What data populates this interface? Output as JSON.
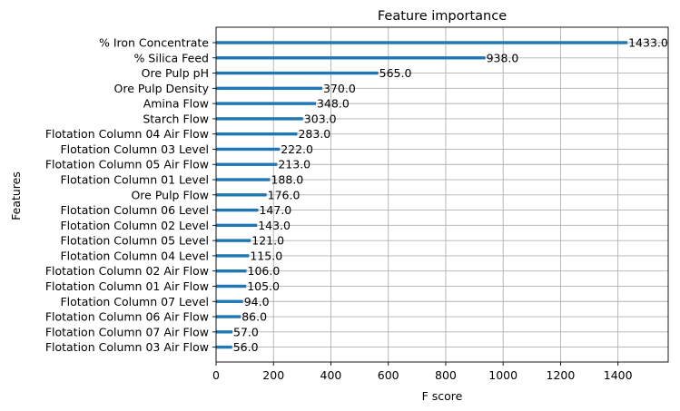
{
  "chart_data": {
    "type": "bar",
    "orientation": "horizontal",
    "title": "Feature importance",
    "xlabel": "F score",
    "ylabel": "Features",
    "xlim": [
      0,
      1575
    ],
    "xticks": [
      0,
      200,
      400,
      600,
      800,
      1000,
      1200,
      1400
    ],
    "grid": true,
    "categories": [
      "% Iron Concentrate",
      "% Silica Feed",
      "Ore Pulp pH",
      "Ore Pulp Density",
      "Amina Flow",
      "Starch Flow",
      "Flotation Column 04 Air Flow",
      "Flotation Column 03 Level",
      "Flotation Column 05 Air Flow",
      "Flotation Column 01 Level",
      "Ore Pulp Flow",
      "Flotation Column 06 Level",
      "Flotation Column 02 Level",
      "Flotation Column 05 Level",
      "Flotation Column 04 Level",
      "Flotation Column 02 Air Flow",
      "Flotation Column 01 Air Flow",
      "Flotation Column 07 Level",
      "Flotation Column 06 Air Flow",
      "Flotation Column 07 Air Flow",
      "Flotation Column 03 Air Flow"
    ],
    "values": [
      1433.0,
      938.0,
      565.0,
      370.0,
      348.0,
      303.0,
      283.0,
      222.0,
      213.0,
      188.0,
      176.0,
      147.0,
      143.0,
      121.0,
      115.0,
      106.0,
      105.0,
      94.0,
      86.0,
      57.0,
      56.0
    ],
    "value_labels": [
      "1433.0",
      "938.0",
      "565.0",
      "370.0",
      "348.0",
      "303.0",
      "283.0",
      "222.0",
      "213.0",
      "188.0",
      "176.0",
      "147.0",
      "143.0",
      "121.0",
      "115.0",
      "106.0",
      "105.0",
      "94.0",
      "86.0",
      "57.0",
      "56.0"
    ],
    "bar_color": "#1f77b4",
    "grid_color": "#b0b0b0"
  }
}
